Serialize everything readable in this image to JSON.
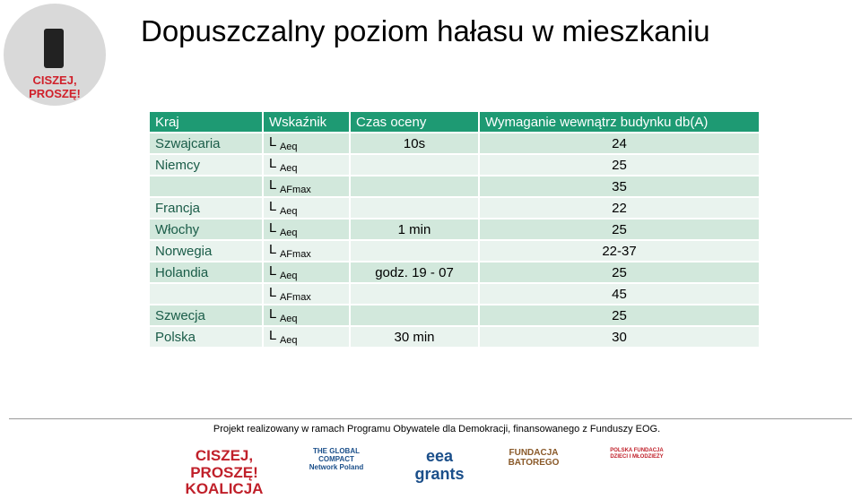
{
  "title": "Dopuszczalny poziom hałasu w mieszkaniu",
  "logo": {
    "line1": "CISZEJ,",
    "line2": "PROSZĘ!"
  },
  "table": {
    "header": [
      "Kraj",
      "Wskaźnik",
      "Czas oceny",
      "Wymaganie wewnątrz budynku db(A)"
    ],
    "rows": [
      {
        "country": "Szwajcaria",
        "indicator": {
          "base": "L",
          "sub": "Aeq"
        },
        "time": "10s",
        "requirement": "24"
      },
      {
        "country": "Niemcy",
        "indicator": {
          "base": "L",
          "sub": "Aeq"
        },
        "requirement": "25"
      },
      {
        "indicator": {
          "base": "L",
          "sub": "AFmax"
        },
        "requirement": "35"
      },
      {
        "country": "Francja",
        "indicator": {
          "base": "L",
          "sub": "Aeq"
        },
        "requirement": "22"
      },
      {
        "country": "Włochy",
        "indicator": {
          "base": "L",
          "sub": "Aeq"
        },
        "time": "1 min",
        "requirement": "25"
      },
      {
        "country": "Norwegia",
        "indicator": {
          "base": "L",
          "sub": "AFmax"
        },
        "requirement": "22-37"
      },
      {
        "country": "Holandia",
        "indicator": {
          "base": "L",
          "sub": "Aeq"
        },
        "time": "godz. 19 - 07",
        "requirement": "25"
      },
      {
        "indicator": {
          "base": "L",
          "sub": "AFmax"
        },
        "requirement": "45"
      },
      {
        "country": "Szwecja",
        "indicator": {
          "base": "L",
          "sub": "Aeq"
        },
        "requirement": "25"
      },
      {
        "country": "Polska",
        "indicator": {
          "base": "L",
          "sub": "Aeq"
        },
        "time": "30 min",
        "requirement": "30"
      }
    ]
  },
  "footer": {
    "text": "Projekt realizowany w ramach Programu Obywatele dla Demokracji, finansowanego z Funduszy EOG.",
    "logos": [
      {
        "lines": [
          "CISZEJ,",
          "PROSZĘ!",
          "KOALICJA"
        ]
      },
      {
        "lines": [
          "THE GLOBAL COMPACT",
          "Network Poland"
        ]
      },
      {
        "lines": [
          "eea",
          "grants"
        ]
      },
      {
        "lines": [
          "FUNDACJA",
          "BATOREGO"
        ]
      },
      {
        "lines": [
          "POLSKA FUNDACJA",
          "DZIECI I MŁODZIEŻY"
        ]
      }
    ]
  }
}
